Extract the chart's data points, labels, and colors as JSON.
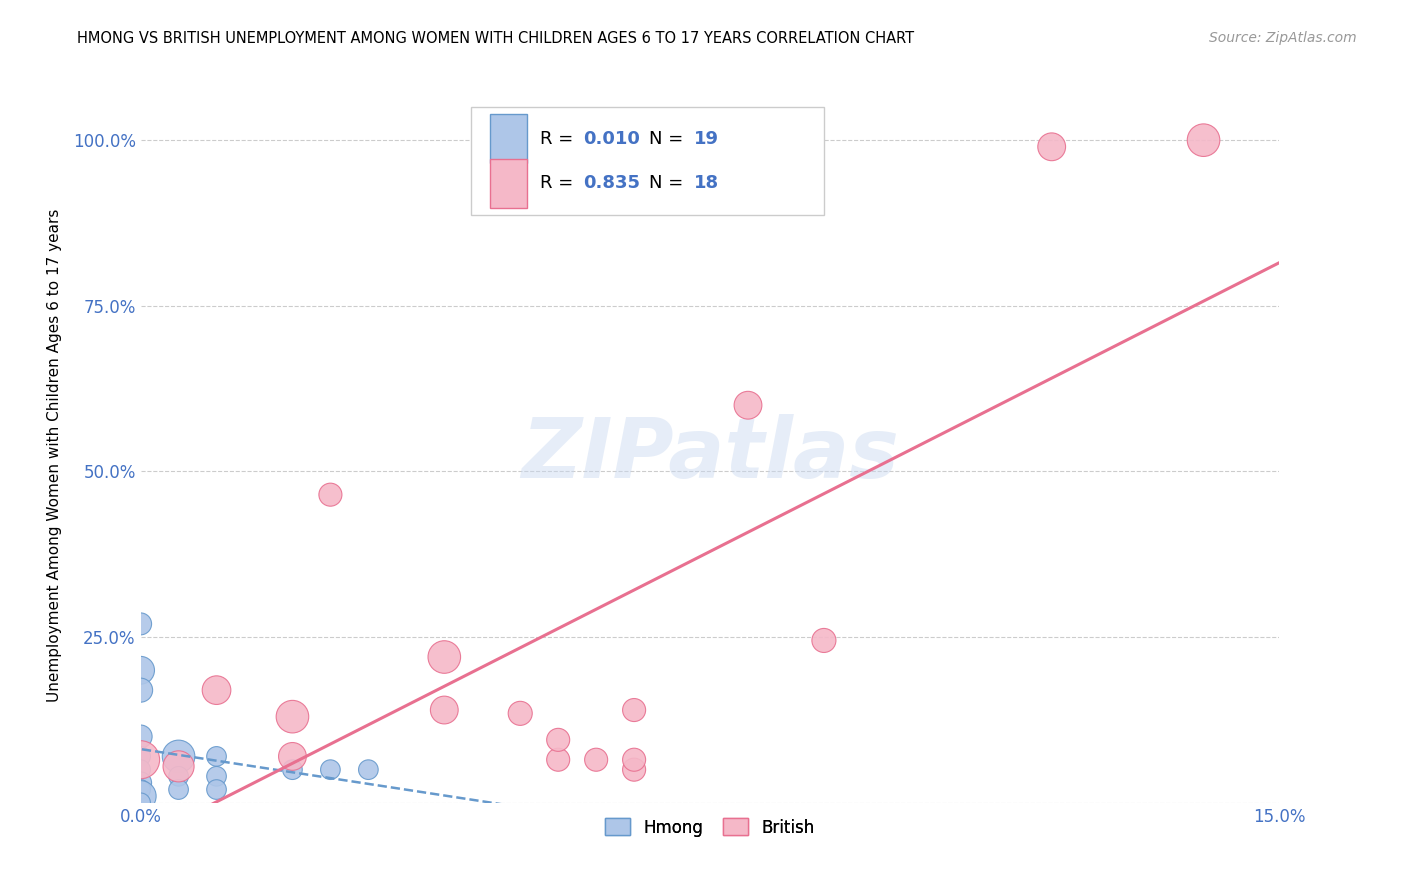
{
  "title": "HMONG VS BRITISH UNEMPLOYMENT AMONG WOMEN WITH CHILDREN AGES 6 TO 17 YEARS CORRELATION CHART",
  "source": "Source: ZipAtlas.com",
  "ylabel": "Unemployment Among Women with Children Ages 6 to 17 years",
  "legend_bottom": [
    "Hmong",
    "British"
  ],
  "hmong_R": "0.010",
  "hmong_N": "19",
  "british_R": "0.835",
  "british_N": "18",
  "xlim": [
    0.0,
    0.15
  ],
  "ylim": [
    0.0,
    1.05
  ],
  "xticks": [
    0.0,
    0.025,
    0.05,
    0.075,
    0.1,
    0.125,
    0.15
  ],
  "xtick_labels": [
    "0.0%",
    "",
    "",
    "",
    "",
    "",
    "15.0%"
  ],
  "yticks": [
    0.0,
    0.25,
    0.5,
    0.75,
    1.0
  ],
  "ytick_labels": [
    "",
    "25.0%",
    "50.0%",
    "75.0%",
    "100.0%"
  ],
  "hmong_color": "#aec6e8",
  "british_color": "#f5b8c8",
  "hmong_edge_color": "#6699cc",
  "british_edge_color": "#e87090",
  "hmong_line_color": "#6699cc",
  "british_line_color": "#e87090",
  "watermark": "ZIPatlas",
  "axis_color": "#4472c4",
  "grid_color": "#cccccc",
  "hmong_x": [
    0.0,
    0.0,
    0.0,
    0.0,
    0.0,
    0.0,
    0.0,
    0.0,
    0.0,
    0.0,
    0.005,
    0.005,
    0.005,
    0.01,
    0.01,
    0.01,
    0.02,
    0.025,
    0.03
  ],
  "hmong_y": [
    0.27,
    0.2,
    0.17,
    0.1,
    0.07,
    0.05,
    0.03,
    0.02,
    0.01,
    0.0,
    0.07,
    0.04,
    0.02,
    0.07,
    0.04,
    0.02,
    0.05,
    0.05,
    0.05
  ],
  "hmong_size": [
    100,
    160,
    120,
    110,
    80,
    80,
    100,
    80,
    200,
    80,
    220,
    80,
    80,
    80,
    80,
    80,
    80,
    80,
    80
  ],
  "british_x": [
    0.0,
    0.005,
    0.01,
    0.02,
    0.02,
    0.025,
    0.04,
    0.04,
    0.05,
    0.055,
    0.055,
    0.06,
    0.065,
    0.065,
    0.065,
    0.08,
    0.09,
    0.14
  ],
  "british_y": [
    0.065,
    0.055,
    0.17,
    0.13,
    0.07,
    0.465,
    0.22,
    0.14,
    0.135,
    0.065,
    0.095,
    0.065,
    0.05,
    0.065,
    0.14,
    0.6,
    0.245,
    1.0
  ],
  "british_size": [
    300,
    200,
    170,
    220,
    160,
    110,
    220,
    160,
    120,
    110,
    110,
    110,
    110,
    110,
    110,
    160,
    120,
    220
  ],
  "british_outlier_x": [
    0.12
  ],
  "british_outlier_y": [
    0.99
  ],
  "british_outlier_size": [
    160
  ]
}
